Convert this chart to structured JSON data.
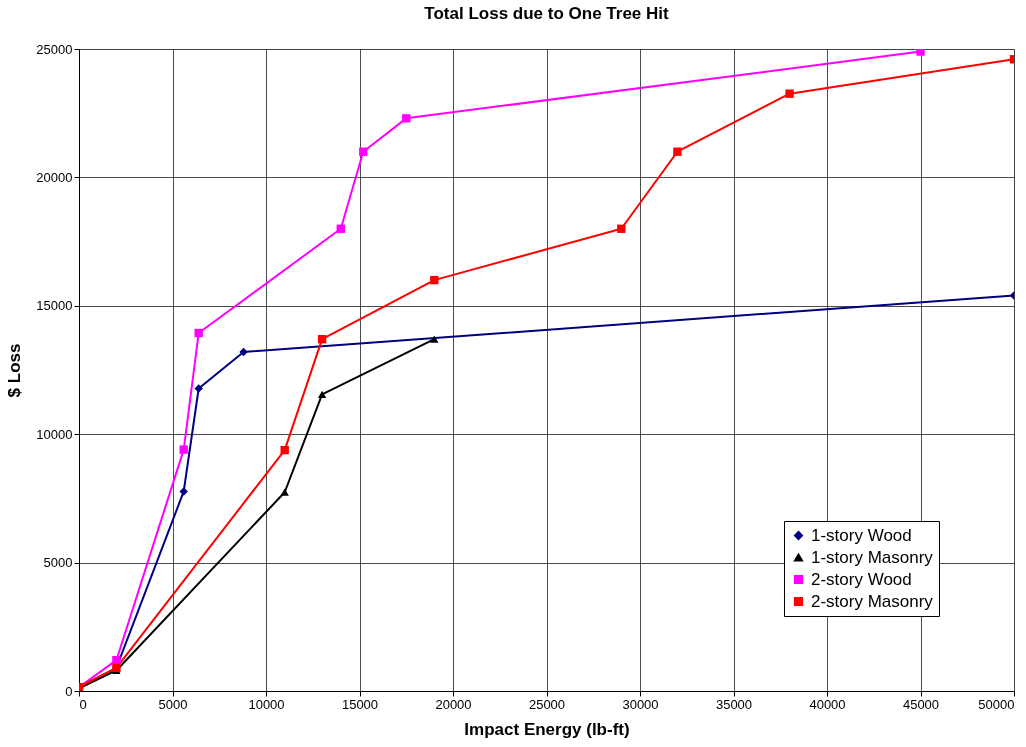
{
  "chart_data": {
    "type": "line",
    "title": "Total Loss due to One Tree Hit",
    "xlabel": "Impact Energy (lb-ft)",
    "ylabel": "$ Loss",
    "xlim": [
      0,
      50000
    ],
    "xticks": [
      0,
      5000,
      10000,
      15000,
      20000,
      25000,
      30000,
      35000,
      40000,
      45000,
      50000
    ],
    "ylim": [
      0,
      25000
    ],
    "yticks": [
      0,
      5000,
      10000,
      15000,
      20000,
      25000
    ],
    "grid": true,
    "legend": "bottom right",
    "series": [
      {
        "name": "1-story Wood",
        "color": "#000080",
        "marker": "diamond",
        "x": [
          0,
          2000,
          5600,
          6400,
          8800,
          50000
        ],
        "values": [
          140,
          900,
          7770,
          11780,
          13200,
          15400
        ]
      },
      {
        "name": "1-story Masonry",
        "color": "#000000",
        "marker": "triangle",
        "x": [
          0,
          2000,
          11000,
          13000,
          19000
        ],
        "values": [
          100,
          800,
          7740,
          11550,
          13700
        ]
      },
      {
        "name": "2-story Wood",
        "color": "#ff00ff",
        "marker": "square",
        "x": [
          0,
          2000,
          5600,
          6400,
          14000,
          15200,
          17500,
          45000
        ],
        "values": [
          150,
          1200,
          9400,
          13940,
          18000,
          21000,
          22300,
          24900
        ]
      },
      {
        "name": "2-story Masonry",
        "color": "#ff0000",
        "marker": "square",
        "x": [
          0,
          2000,
          11000,
          13000,
          19000,
          29000,
          32000,
          38000,
          50000
        ],
        "values": [
          150,
          900,
          9380,
          13700,
          16000,
          18000,
          21000,
          23260,
          24600
        ]
      }
    ]
  }
}
